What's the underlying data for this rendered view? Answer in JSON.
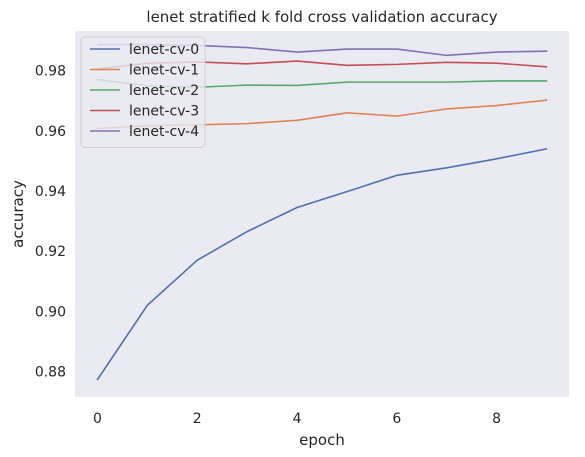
{
  "chart_data": {
    "type": "line",
    "title": "lenet stratified k fold cross validation accuracy",
    "xlabel": "epoch",
    "ylabel": "accuracy",
    "x": [
      0,
      1,
      2,
      3,
      4,
      5,
      6,
      7,
      8,
      9
    ],
    "xlim": [
      -0.45,
      9.45
    ],
    "ylim": [
      0.8715,
      0.9932
    ],
    "xticks": [
      0,
      2,
      4,
      6,
      8
    ],
    "yticks": [
      0.88,
      0.9,
      0.92,
      0.94,
      0.96,
      0.98
    ],
    "ytick_labels": [
      "0.88",
      "0.90",
      "0.92",
      "0.94",
      "0.96",
      "0.98"
    ],
    "grid": false,
    "background": "#eaeaf2",
    "legend_position": "top-left",
    "series": [
      {
        "name": "lenet-cv-0",
        "color": "#4c72b0",
        "values": [
          0.8773,
          0.902,
          0.917,
          0.9265,
          0.9345,
          0.9398,
          0.9452,
          0.9477,
          0.9507,
          0.954
        ]
      },
      {
        "name": "lenet-cv-1",
        "color": "#dd8452",
        "values": [
          0.9608,
          0.9617,
          0.962,
          0.9624,
          0.9635,
          0.966,
          0.9649,
          0.9673,
          0.9684,
          0.9702
        ]
      },
      {
        "name": "lenet-cv-2",
        "color": "#55a868",
        "values": [
          0.977,
          0.975,
          0.9745,
          0.9752,
          0.9751,
          0.9762,
          0.9762,
          0.9762,
          0.9766,
          0.9766
        ]
      },
      {
        "name": "lenet-cv-3",
        "color": "#c44e52",
        "values": [
          0.9806,
          0.9825,
          0.9829,
          0.9823,
          0.9832,
          0.9818,
          0.9821,
          0.9828,
          0.9825,
          0.9813
        ]
      },
      {
        "name": "lenet-cv-4",
        "color": "#8172b3",
        "values": [
          0.9887,
          0.9887,
          0.9884,
          0.9877,
          0.9862,
          0.9872,
          0.9872,
          0.9851,
          0.9862,
          0.9865
        ]
      }
    ]
  }
}
